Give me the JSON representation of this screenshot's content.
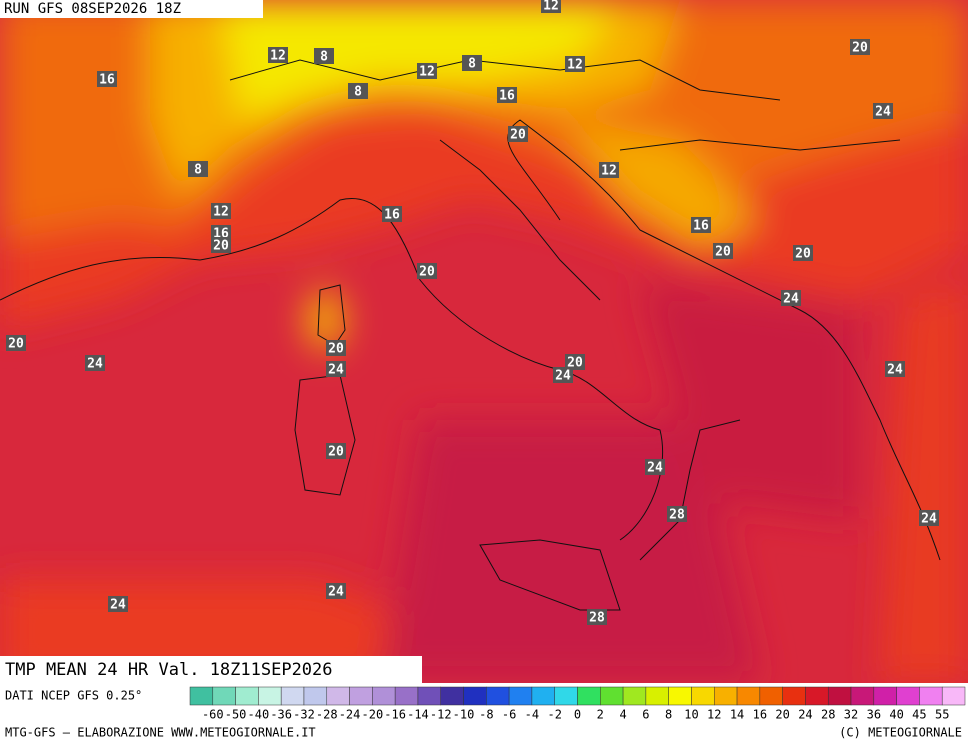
{
  "header": {
    "run": "RUN GFS 08SEP2026 18Z"
  },
  "map": {
    "title": "TMP MEAN 24 HR Val. 18Z11SEP2026",
    "contour_labels": [
      12,
      20,
      12,
      8,
      16,
      12,
      8,
      12,
      8,
      16,
      24,
      20,
      8,
      12,
      12,
      16,
      16,
      16,
      20,
      20,
      20,
      20,
      24,
      20,
      20,
      24,
      24,
      20,
      24,
      24,
      20,
      24,
      28,
      24,
      24,
      24,
      28
    ]
  },
  "colorbar": {
    "source": "DATI NCEP GFS 0.25°",
    "labels": [
      -60,
      -50,
      -40,
      -36,
      -32,
      -28,
      -24,
      -20,
      -16,
      -14,
      -12,
      -10,
      -8,
      -6,
      -4,
      -2,
      0,
      2,
      4,
      6,
      8,
      10,
      12,
      14,
      16,
      20,
      24,
      28,
      32,
      36,
      40,
      45,
      55
    ]
  },
  "footer": {
    "left": "MTG-GFS — ELABORAZIONE WWW.METEOGIORNALE.IT",
    "right": "(C) METEOGIORNALE"
  }
}
